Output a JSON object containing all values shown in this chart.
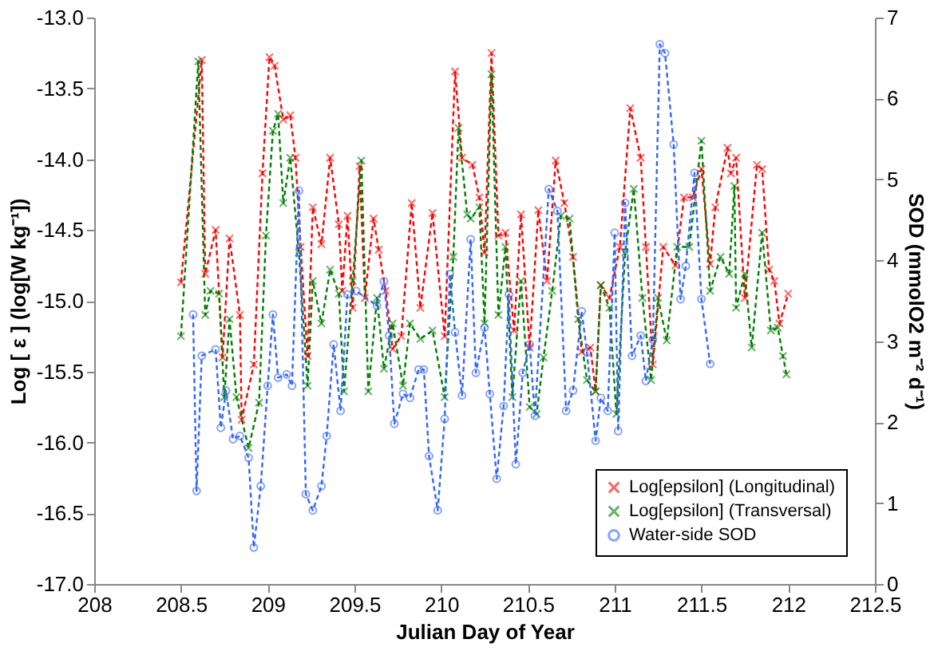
{
  "chart_data": {
    "type": "line",
    "xlabel": "Julian Day of Year",
    "ylabel": "Log [ ε ]  (log[W kg⁻¹])",
    "y2label": "SOD (mmolO2 m⁻² d⁻¹)",
    "xlim": [
      208,
      212.5
    ],
    "xticks": [
      208,
      208.5,
      209,
      209.5,
      210,
      210.5,
      211,
      211.5,
      212,
      212.5
    ],
    "ylim": [
      -17,
      -13
    ],
    "yticks": [
      {
        "value": -17,
        "label": "-17.0"
      },
      {
        "value": -16.5,
        "label": "-16.5"
      },
      {
        "value": -16,
        "label": "-16.0"
      },
      {
        "value": -15.5,
        "label": "-15.5"
      },
      {
        "value": -15,
        "label": "-15.0"
      },
      {
        "value": -14.5,
        "label": "-14.5"
      },
      {
        "value": -14,
        "label": "-14.0"
      },
      {
        "value": -13.5,
        "label": "-13.5"
      },
      {
        "value": -13,
        "label": "-13.0"
      }
    ],
    "y2lim": [
      0,
      7
    ],
    "y2ticks": [
      0,
      1,
      2,
      3,
      4,
      5,
      6,
      7
    ],
    "grid": false,
    "legend": "bottom right",
    "line_style": "dashed",
    "series": [
      {
        "name": "Log[epsilon] (Longitudinal)",
        "color": "#ff0000",
        "marker": "cross",
        "x": [
          208.5,
          208.62,
          208.64,
          208.7,
          208.74,
          208.78,
          208.84,
          208.85,
          208.92,
          208.97,
          209.01,
          209.04,
          209.09,
          209.13,
          209.16,
          209.19,
          209.23,
          209.26,
          209.31,
          209.36,
          209.41,
          209.43,
          209.46,
          209.49,
          209.53,
          209.56,
          209.61,
          209.64,
          209.68,
          209.72,
          209.77,
          209.83,
          209.88,
          209.95,
          210.02,
          210.08,
          210.12,
          210.18,
          210.22,
          210.25,
          210.29,
          210.33,
          210.37,
          210.42,
          210.46,
          210.51,
          210.56,
          210.61,
          210.66,
          210.71,
          210.76,
          210.81,
          210.86,
          210.89,
          210.92,
          210.97,
          211.03,
          211.09,
          211.15,
          211.18,
          211.22,
          211.28,
          211.35,
          211.4,
          211.45,
          211.5,
          211.55,
          211.58,
          211.65,
          211.67,
          211.7,
          211.75,
          211.82,
          211.85,
          211.89,
          211.92,
          211.95,
          212.0
        ],
        "values": [
          -14.87,
          -13.3,
          -14.81,
          -14.5,
          -15.4,
          -14.56,
          -15.1,
          -15.84,
          -15.45,
          -14.1,
          -13.28,
          -13.34,
          -13.72,
          -13.69,
          -13.99,
          -14.62,
          -15.39,
          -14.34,
          -14.6,
          -13.99,
          -14.46,
          -14.93,
          -14.4,
          -15.05,
          -14.05,
          -14.98,
          -14.42,
          -14.64,
          -14.93,
          -15.34,
          -15.25,
          -14.31,
          -15.05,
          -14.38,
          -15.25,
          -13.38,
          -13.99,
          -14.04,
          -14.27,
          -14.66,
          -13.25,
          -14.54,
          -14.52,
          -15.21,
          -14.39,
          -15.33,
          -14.36,
          -14.86,
          -14.01,
          -14.31,
          -14.69,
          -15.36,
          -15.33,
          -15.64,
          -14.89,
          -14.98,
          -14.62,
          -13.64,
          -13.99,
          -14.62,
          -15.45,
          -14.62,
          -14.75,
          -14.27,
          -14.27,
          -14.07,
          -14.74,
          -14.34,
          -13.92,
          -14.1,
          -13.99,
          -14.98,
          -14.04,
          -14.07,
          -14.78,
          -14.86,
          -15.16,
          -14.95
        ]
      },
      {
        "name": "Log[epsilon] (Transversal)",
        "color": "#008000",
        "marker": "cross",
        "x": [
          208.5,
          208.6,
          208.64,
          208.67,
          208.72,
          208.75,
          208.78,
          208.82,
          208.89,
          208.95,
          208.99,
          209.03,
          209.06,
          209.09,
          209.13,
          209.18,
          209.23,
          209.26,
          209.31,
          209.36,
          209.41,
          209.44,
          209.49,
          209.54,
          209.58,
          209.63,
          209.67,
          209.72,
          209.78,
          209.82,
          209.88,
          209.95,
          210.02,
          210.07,
          210.1,
          210.15,
          210.17,
          210.22,
          210.25,
          210.29,
          210.33,
          210.37,
          210.41,
          210.46,
          210.51,
          210.55,
          210.59,
          210.64,
          210.69,
          210.74,
          210.79,
          210.84,
          210.89,
          210.92,
          210.97,
          211.01,
          211.06,
          211.11,
          211.16,
          211.21,
          211.25,
          211.3,
          211.36,
          211.43,
          211.5,
          211.55,
          211.61,
          211.66,
          211.69,
          211.7,
          211.75,
          211.79,
          211.85,
          211.9,
          211.94,
          211.97,
          211.99
        ],
        "values": [
          -15.25,
          -13.31,
          -15.1,
          -14.93,
          -14.95,
          -15.68,
          -15.13,
          -15.68,
          -16.04,
          -15.72,
          -14.54,
          -13.8,
          -13.68,
          -14.31,
          -13.99,
          -14.66,
          -15.6,
          -14.86,
          -15.16,
          -14.78,
          -14.95,
          -15.64,
          -14.86,
          -14.01,
          -15.64,
          -14.98,
          -15.48,
          -15.16,
          -15.6,
          -15.16,
          -15.27,
          -15.21,
          -15.68,
          -14.69,
          -13.78,
          -14.39,
          -14.42,
          -14.34,
          -15.16,
          -13.4,
          -15.1,
          -14.62,
          -15.68,
          -14.86,
          -15.75,
          -15.8,
          -15.4,
          -14.93,
          -14.4,
          -14.42,
          -15.13,
          -15.56,
          -15.64,
          -14.89,
          -15.05,
          -15.8,
          -14.66,
          -14.21,
          -14.98,
          -15.56,
          -14.98,
          -15.28,
          -14.62,
          -14.62,
          -13.87,
          -14.93,
          -14.69,
          -14.81,
          -14.19,
          -15.05,
          -14.81,
          -15.33,
          -14.52,
          -15.21,
          -15.19,
          -15.39,
          -15.52
        ]
      },
      {
        "name": "Water-side SOD",
        "color": "#3366ff",
        "marker": "circle",
        "axis": "y2",
        "x": [
          208.57,
          208.59,
          208.62,
          208.7,
          208.73,
          208.76,
          208.8,
          208.84,
          208.89,
          208.92,
          208.96,
          209.0,
          209.03,
          209.06,
          209.11,
          209.14,
          209.18,
          209.22,
          209.26,
          209.31,
          209.34,
          209.38,
          209.42,
          209.46,
          209.51,
          209.63,
          209.67,
          209.7,
          209.73,
          209.78,
          209.82,
          209.87,
          209.9,
          209.93,
          209.98,
          210.02,
          210.05,
          210.08,
          210.12,
          210.17,
          210.2,
          210.25,
          210.28,
          210.32,
          210.36,
          210.39,
          210.43,
          210.47,
          210.51,
          210.54,
          210.62,
          210.67,
          210.72,
          210.76,
          210.81,
          210.84,
          210.89,
          210.92,
          210.96,
          211.0,
          211.02,
          211.06,
          211.1,
          211.15,
          211.18,
          211.22,
          211.26,
          211.29,
          211.34,
          211.38,
          211.41,
          211.46,
          211.5,
          211.55
        ],
        "values": [
          3.33,
          1.15,
          2.82,
          2.9,
          1.93,
          2.39,
          1.79,
          1.83,
          1.56,
          0.45,
          1.21,
          2.45,
          3.33,
          2.55,
          2.59,
          2.45,
          4.86,
          1.11,
          0.91,
          1.21,
          1.83,
          2.96,
          2.14,
          3.58,
          3.62,
          3.44,
          3.74,
          3.07,
          1.98,
          2.35,
          2.3,
          2.65,
          2.65,
          1.58,
          0.91,
          2.04,
          3.83,
          3.11,
          2.33,
          4.26,
          2.61,
          3.17,
          2.35,
          1.3,
          2.2,
          3.58,
          1.48,
          2.61,
          2.96,
          2.08,
          4.88,
          4.61,
          2.14,
          2.39,
          3.37,
          2.86,
          1.77,
          2.3,
          2.14,
          4.34,
          1.89,
          4.71,
          2.82,
          3.07,
          2.51,
          3.02,
          6.67,
          6.56,
          5.43,
          3.52,
          3.93,
          5.08,
          3.52,
          2.72
        ]
      }
    ]
  }
}
